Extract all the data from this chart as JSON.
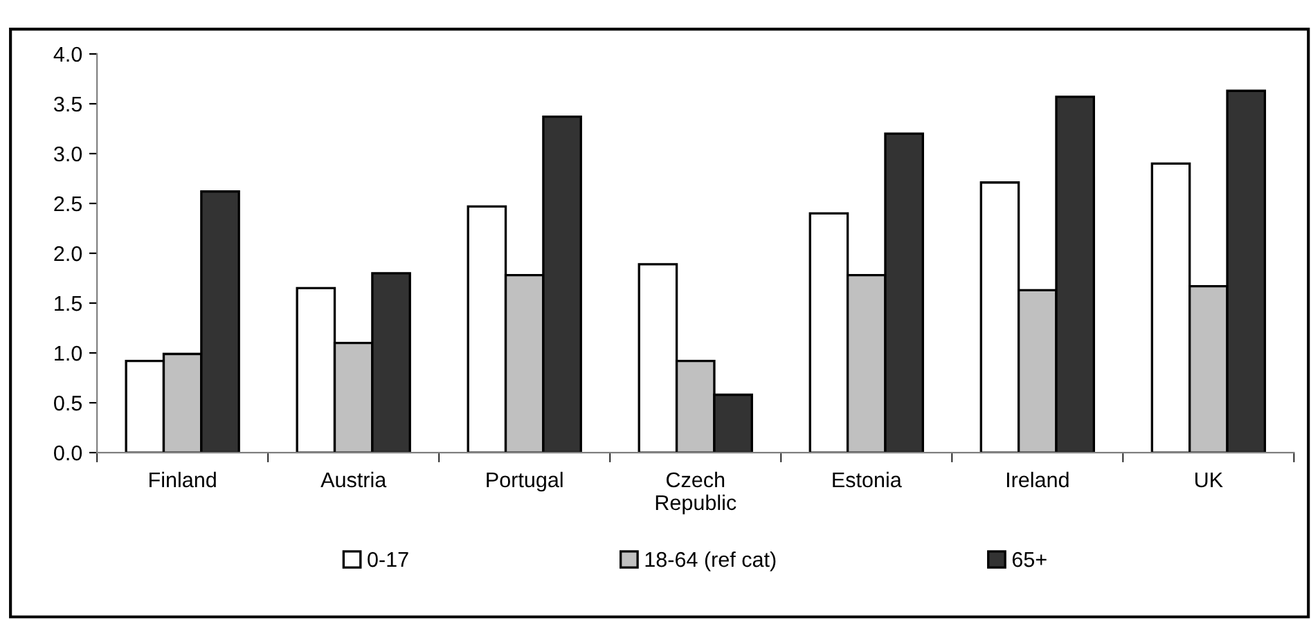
{
  "chart_data": {
    "type": "bar",
    "categories": [
      "Finland",
      "Austria",
      "Portugal",
      "Czech\nRepublic",
      "Estonia",
      "Ireland",
      "UK"
    ],
    "series": [
      {
        "name": "0-17",
        "color": "#ffffff",
        "values": [
          0.92,
          1.65,
          2.47,
          1.89,
          2.4,
          2.71,
          2.9
        ]
      },
      {
        "name": "18-64 (ref cat)",
        "color": "#c0c0c0",
        "values": [
          0.99,
          1.1,
          1.78,
          0.92,
          1.78,
          1.63,
          1.67
        ]
      },
      {
        "name": "65+",
        "color": "#333333",
        "values": [
          2.62,
          1.8,
          3.37,
          0.58,
          3.2,
          3.57,
          3.63
        ]
      }
    ],
    "ylim": [
      0,
      4
    ],
    "yticks": [
      {
        "value": 0,
        "label": "0.0"
      },
      {
        "value": 0.5,
        "label": "0.5"
      },
      {
        "value": 1,
        "label": "1.0"
      },
      {
        "value": 1.5,
        "label": "1.5"
      },
      {
        "value": 2,
        "label": "2.0"
      },
      {
        "value": 2.5,
        "label": "2.5"
      },
      {
        "value": 3,
        "label": "3.0"
      },
      {
        "value": 3.5,
        "label": "3.5"
      },
      {
        "value": 4,
        "label": "4.0"
      }
    ],
    "grid": false,
    "legend": "bottom"
  }
}
